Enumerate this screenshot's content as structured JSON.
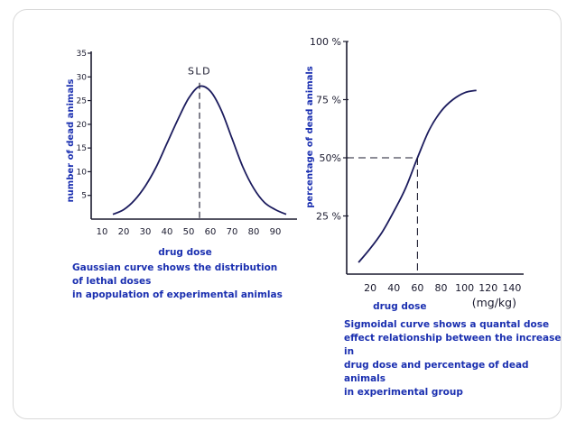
{
  "colors": {
    "axis": "#1a1a2e",
    "curve": "#1c1c5e",
    "label": "#1a2fb0"
  },
  "chart_data": [
    {
      "type": "line",
      "xlabel": "drug dose",
      "ylabel": "number of dead animals",
      "xlim": [
        5,
        100
      ],
      "ylim": [
        0,
        35
      ],
      "xticks": [
        10,
        20,
        30,
        40,
        50,
        60,
        70,
        80,
        90
      ],
      "yticks": [
        5,
        10,
        15,
        20,
        25,
        30,
        35
      ],
      "annotation": {
        "text": "SLD",
        "x": 55
      },
      "series": [
        {
          "x": [
            15,
            20,
            25,
            30,
            35,
            40,
            45,
            50,
            55,
            60,
            65,
            70,
            75,
            80,
            85,
            90,
            95
          ],
          "y": [
            1,
            2,
            4,
            7,
            11,
            16,
            21,
            25.5,
            28,
            27,
            23,
            17,
            11,
            6.5,
            3.5,
            2,
            1
          ]
        }
      ],
      "caption": [
        "Gaussian curve shows the distribution of lethal doses",
        "in apopulation of experimental animlas"
      ]
    },
    {
      "type": "line",
      "xlabel": "drug dose",
      "ylabel": "percentage of dead animals",
      "unit": "(mg/kg)",
      "xlim": [
        0,
        150
      ],
      "ylim": [
        0,
        100
      ],
      "xticks": [
        20,
        40,
        60,
        80,
        100,
        120,
        140
      ],
      "ytick_values": [
        25,
        50,
        75,
        100
      ],
      "ytick_labels": [
        "25 %",
        "50%",
        "75 %",
        "100 %"
      ],
      "reference": {
        "x": 60,
        "y": 50
      },
      "series": [
        {
          "x": [
            10,
            20,
            30,
            40,
            50,
            60,
            70,
            80,
            90,
            100,
            110
          ],
          "y": [
            5,
            11,
            18,
            27,
            37,
            50,
            62,
            70,
            75,
            78,
            79
          ]
        }
      ],
      "caption": [
        "Sigmoidal curve shows a quantal dose",
        "effect relationship between the increase in",
        "drug dose and percentage of dead animals",
        "in experimental group"
      ]
    }
  ]
}
